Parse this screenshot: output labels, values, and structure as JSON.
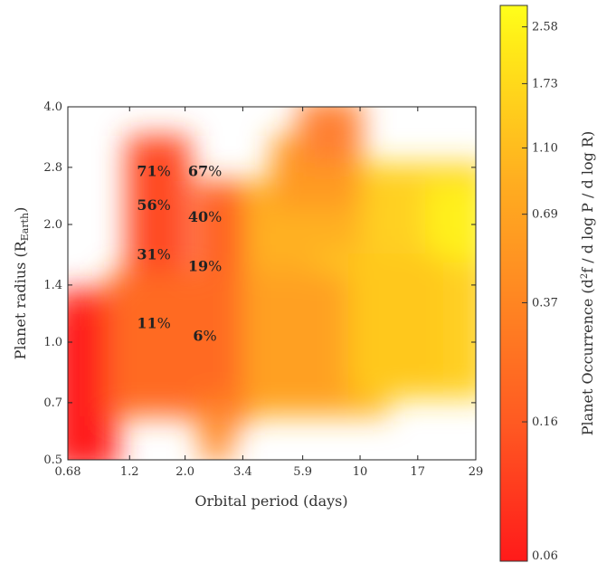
{
  "chart_data": {
    "type": "heatmap",
    "title": "",
    "xlabel": "Orbital period (days)",
    "ylabel": "Planet radius (R",
    "ylabel_sub": "Earth",
    "ylabel_close": ")",
    "x_scale": "log",
    "y_scale": "log",
    "xlim": [
      0.68,
      29
    ],
    "ylim": [
      0.5,
      4.0
    ],
    "x_ticks": [
      "0.68",
      "1.2",
      "2.0",
      "3.4",
      "5.9",
      "10",
      "17",
      "29"
    ],
    "y_ticks": [
      "0.5",
      "0.7",
      "1.0",
      "1.4",
      "2.0",
      "2.8",
      "4.0"
    ],
    "annotations": [
      {
        "value": "71",
        "unit": "%",
        "x": 1.5,
        "y": 2.75
      },
      {
        "value": "67",
        "unit": "%",
        "x": 2.4,
        "y": 2.75
      },
      {
        "value": "56",
        "unit": "%",
        "x": 1.5,
        "y": 2.25
      },
      {
        "value": "40",
        "unit": "%",
        "x": 2.4,
        "y": 2.1
      },
      {
        "value": "31",
        "unit": "%",
        "x": 1.5,
        "y": 1.68
      },
      {
        "value": "19",
        "unit": "%",
        "x": 2.4,
        "y": 1.57
      },
      {
        "value": "11",
        "unit": "%",
        "x": 1.5,
        "y": 1.12
      },
      {
        "value": "6",
        "unit": "%",
        "x": 2.4,
        "y": 1.04
      }
    ],
    "colorbar": {
      "label": "Planet Occurrence (d",
      "label_sup": "2",
      "label_rest": "f / d log P / d log R)",
      "ticks": [
        "0.06",
        "0.16",
        "0.37",
        "0.69",
        "1.10",
        "1.73",
        "2.58"
      ],
      "tick_values": [
        0.06,
        0.16,
        0.37,
        0.69,
        1.1,
        1.73,
        2.58
      ],
      "range": [
        0.06,
        3.0
      ],
      "colors": [
        "#ff1a1a",
        "#ff5522",
        "#ff8822",
        "#ffb020",
        "#ffd21a",
        "#ffee18",
        "#ffff1a"
      ]
    }
  }
}
